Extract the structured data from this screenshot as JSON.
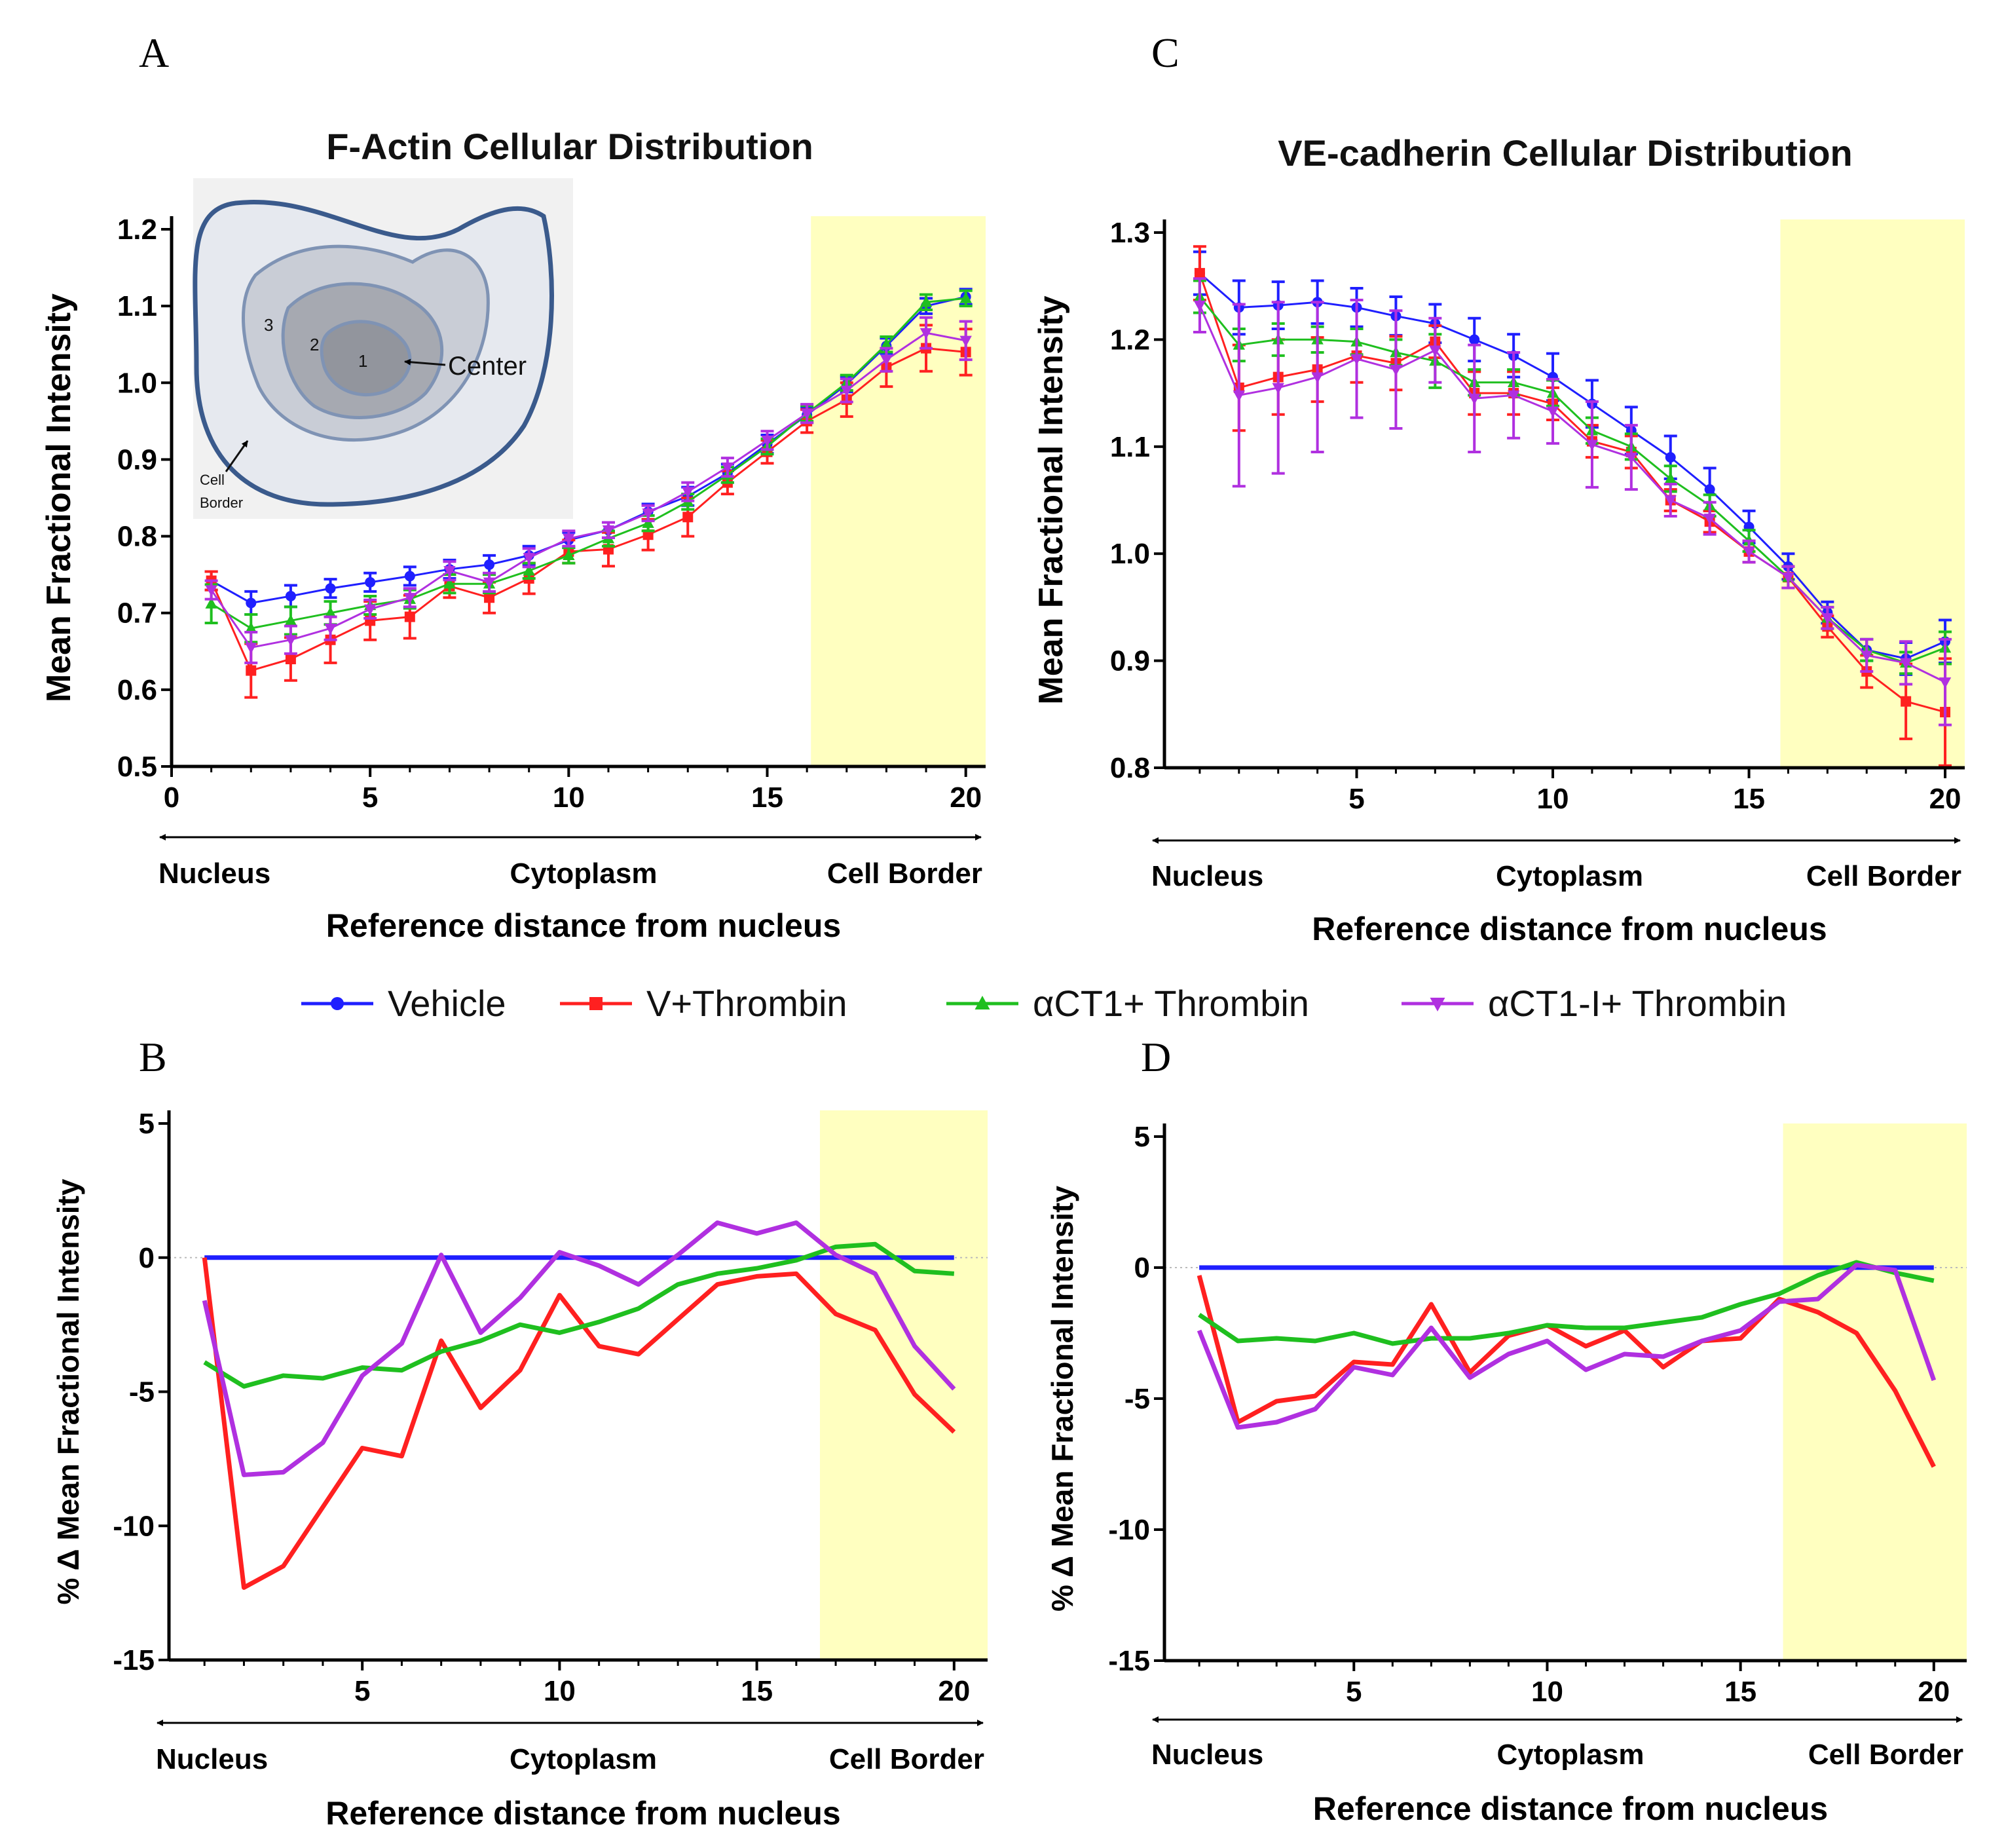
{
  "legend": [
    {
      "label": "Vehicle",
      "color": "#1f1fff",
      "marker": "circle"
    },
    {
      "label": "V+Thrombin",
      "color": "#ff2020",
      "marker": "square"
    },
    {
      "label": "αCT1+ Thrombin",
      "color": "#1fbf1f",
      "marker": "triangle-up"
    },
    {
      "label": "αCT1-I+ Thrombin",
      "color": "#b030e0",
      "marker": "triangle-down"
    }
  ],
  "colors": {
    "highlight": "#ffffc0",
    "axis": "#000000"
  },
  "chart_data": [
    {
      "panel": "A",
      "type": "line",
      "title": "F-Actin Cellular  Distribution",
      "ylabel": "Mean Fractional Intensity",
      "xlabel": "Reference distance from nucleus",
      "region_labels": [
        "Nucleus",
        "Cytoplasm",
        "Cell Border"
      ],
      "xlim": [
        0,
        20.5
      ],
      "ylim": [
        0.5,
        1.2
      ],
      "xticks": [
        0,
        5,
        10,
        15,
        20
      ],
      "yticks": [
        0.5,
        0.6,
        0.7,
        0.8,
        0.9,
        1.0,
        1.1,
        1.2
      ],
      "ytick_labels": [
        "0.5",
        "0.6",
        "0.7",
        "0.8",
        "0.9",
        "1.0",
        "1.1",
        "1.2"
      ],
      "highlight_x": [
        16.1,
        20.5
      ],
      "x": [
        1,
        2,
        3,
        4,
        5,
        6,
        7,
        8,
        9,
        10,
        11,
        12,
        13,
        14,
        15,
        16,
        17,
        18,
        19,
        20
      ],
      "series": [
        {
          "name": "Vehicle",
          "values": [
            0.742,
            0.713,
            0.722,
            0.732,
            0.74,
            0.748,
            0.757,
            0.763,
            0.775,
            0.795,
            0.808,
            0.832,
            0.852,
            0.882,
            0.92,
            0.958,
            0.998,
            1.048,
            1.1,
            1.112
          ],
          "errors": [
            0.012,
            0.015,
            0.014,
            0.012,
            0.012,
            0.012,
            0.012,
            0.012,
            0.012,
            0.01,
            0.01,
            0.01,
            0.012,
            0.012,
            0.012,
            0.01,
            0.01,
            0.01,
            0.01,
            0.01
          ]
        },
        {
          "name": "V+Thrombin",
          "values": [
            0.742,
            0.625,
            0.64,
            0.665,
            0.69,
            0.695,
            0.735,
            0.72,
            0.745,
            0.78,
            0.783,
            0.802,
            0.825,
            0.87,
            0.91,
            0.95,
            0.978,
            1.02,
            1.045,
            1.04
          ],
          "errors": [
            0.012,
            0.035,
            0.028,
            0.03,
            0.025,
            0.028,
            0.015,
            0.02,
            0.02,
            0.015,
            0.022,
            0.02,
            0.025,
            0.015,
            0.015,
            0.015,
            0.022,
            0.025,
            0.03,
            0.03
          ]
        },
        {
          "name": "αCT1+ Thrombin",
          "values": [
            0.712,
            0.68,
            0.69,
            0.7,
            0.71,
            0.718,
            0.738,
            0.738,
            0.755,
            0.775,
            0.797,
            0.817,
            0.845,
            0.88,
            0.917,
            0.96,
            1.0,
            1.05,
            1.105,
            1.11
          ],
          "errors": [
            0.025,
            0.018,
            0.018,
            0.015,
            0.012,
            0.012,
            0.012,
            0.012,
            0.01,
            0.01,
            0.01,
            0.01,
            0.01,
            0.01,
            0.01,
            0.01,
            0.01,
            0.01,
            0.01,
            0.01
          ]
        },
        {
          "name": "αCT1-I+ Thrombin",
          "values": [
            0.73,
            0.655,
            0.665,
            0.68,
            0.705,
            0.72,
            0.755,
            0.74,
            0.772,
            0.797,
            0.808,
            0.83,
            0.858,
            0.89,
            0.925,
            0.96,
            0.99,
            1.03,
            1.065,
            1.055
          ],
          "errors": [
            0.012,
            0.02,
            0.018,
            0.015,
            0.012,
            0.012,
            0.012,
            0.012,
            0.012,
            0.01,
            0.01,
            0.01,
            0.012,
            0.012,
            0.012,
            0.012,
            0.015,
            0.015,
            0.02,
            0.025
          ]
        }
      ],
      "inset": {
        "labels": [
          "1",
          "2",
          "3",
          "Center",
          "Cell",
          "Border"
        ]
      }
    },
    {
      "panel": "C",
      "type": "line",
      "title": "VE-cadherin Cellular Distribution",
      "ylabel": "Mean Fractional Intensity",
      "xlabel": "Reference distance from nucleus",
      "region_labels": [
        "Nucleus",
        "Cytoplasm",
        "Cell Border"
      ],
      "xlim": [
        0.1,
        20.5
      ],
      "ylim": [
        0.8,
        1.3
      ],
      "xticks": [
        5,
        10,
        15,
        20
      ],
      "yticks": [
        0.8,
        0.9,
        1.0,
        1.1,
        1.2,
        1.3
      ],
      "ytick_labels": [
        "0.8",
        "0.9",
        "1.0",
        "1.1",
        "1.2",
        "1.3"
      ],
      "highlight_x": [
        15.8,
        20.5
      ],
      "x": [
        1,
        2,
        3,
        4,
        5,
        6,
        7,
        8,
        9,
        10,
        11,
        12,
        13,
        14,
        15,
        16,
        17,
        18,
        19,
        20
      ],
      "series": [
        {
          "name": "Vehicle",
          "values": [
            1.262,
            1.23,
            1.232,
            1.235,
            1.23,
            1.222,
            1.215,
            1.2,
            1.185,
            1.165,
            1.14,
            1.115,
            1.09,
            1.06,
            1.025,
            0.988,
            0.945,
            0.91,
            0.902,
            0.918
          ],
          "errors": [
            0.02,
            0.025,
            0.022,
            0.02,
            0.018,
            0.018,
            0.018,
            0.02,
            0.02,
            0.022,
            0.022,
            0.022,
            0.02,
            0.02,
            0.015,
            0.012,
            0.01,
            0.01,
            0.015,
            0.02
          ]
        },
        {
          "name": "V+Thrombin",
          "values": [
            1.262,
            1.155,
            1.165,
            1.172,
            1.185,
            1.178,
            1.198,
            1.15,
            1.15,
            1.14,
            1.105,
            1.095,
            1.05,
            1.03,
            1.002,
            0.978,
            0.932,
            0.89,
            0.862,
            0.852
          ],
          "errors": [
            0.025,
            0.04,
            0.035,
            0.03,
            0.025,
            0.025,
            0.015,
            0.02,
            0.02,
            0.015,
            0.015,
            0.015,
            0.01,
            0.01,
            0.01,
            0.01,
            0.01,
            0.015,
            0.035,
            0.05
          ]
        },
        {
          "name": "αCT1+ Thrombin",
          "values": [
            1.24,
            1.195,
            1.2,
            1.2,
            1.198,
            1.188,
            1.18,
            1.16,
            1.16,
            1.15,
            1.115,
            1.1,
            1.07,
            1.045,
            1.012,
            0.978,
            0.94,
            0.91,
            0.898,
            0.912
          ],
          "errors": [
            0.015,
            0.015,
            0.015,
            0.012,
            0.012,
            0.012,
            0.025,
            0.012,
            0.012,
            0.012,
            0.012,
            0.012,
            0.012,
            0.01,
            0.01,
            0.01,
            0.01,
            0.01,
            0.01,
            0.015
          ]
        },
        {
          "name": "αCT1-I+ Thrombin",
          "values": [
            1.232,
            1.148,
            1.155,
            1.165,
            1.182,
            1.172,
            1.19,
            1.145,
            1.148,
            1.133,
            1.102,
            1.09,
            1.05,
            1.033,
            1.002,
            0.978,
            0.94,
            0.905,
            0.898,
            0.88
          ],
          "errors": [
            0.025,
            0.085,
            0.08,
            0.07,
            0.055,
            0.055,
            0.03,
            0.05,
            0.04,
            0.03,
            0.04,
            0.03,
            0.015,
            0.015,
            0.01,
            0.01,
            0.01,
            0.015,
            0.02,
            0.04
          ]
        }
      ]
    },
    {
      "panel": "B",
      "type": "line",
      "title": "",
      "ylabel": "% Δ Mean Fractional Intensity",
      "xlabel": "Reference distance from nucleus",
      "region_labels": [
        "Nucleus",
        "Cytoplasm",
        "Cell Border"
      ],
      "xlim": [
        0.1,
        20.85
      ],
      "ylim": [
        -15,
        5
      ],
      "xticks": [
        5,
        10,
        15,
        20
      ],
      "yticks": [
        -15,
        -10,
        -5,
        0,
        5
      ],
      "ytick_labels": [
        "-15",
        "-10",
        "-5",
        "0",
        "5"
      ],
      "highlight_x": [
        16.6,
        20.85
      ],
      "x": [
        1,
        2,
        3,
        4,
        5,
        6,
        7,
        8,
        9,
        10,
        11,
        12,
        13,
        14,
        15,
        16,
        17,
        18,
        19,
        20
      ],
      "series": [
        {
          "name": "Vehicle",
          "values": [
            0,
            0,
            0,
            0,
            0,
            0,
            0,
            0,
            0,
            0,
            0,
            0,
            0,
            0,
            0,
            0,
            0,
            0,
            0,
            0
          ]
        },
        {
          "name": "V+Thrombin",
          "values": [
            0,
            -12.3,
            -11.5,
            -9.3,
            -7.1,
            -7.4,
            -3.1,
            -5.6,
            -4.2,
            -1.4,
            -3.3,
            -3.6,
            -2.3,
            -1.0,
            -0.7,
            -0.6,
            -2.1,
            -2.7,
            -5.1,
            -6.5
          ]
        },
        {
          "name": "αCT1+ Thrombin",
          "values": [
            -3.9,
            -4.8,
            -4.4,
            -4.5,
            -4.1,
            -4.2,
            -3.5,
            -3.1,
            -2.5,
            -2.8,
            -2.4,
            -1.9,
            -1.0,
            -0.6,
            -0.4,
            -0.1,
            0.4,
            0.5,
            -0.5,
            -0.6
          ]
        },
        {
          "name": "αCT1-I+ Thrombin",
          "values": [
            -1.6,
            -8.1,
            -8.0,
            -6.9,
            -4.4,
            -3.2,
            0.1,
            -2.8,
            -1.5,
            0.2,
            -0.3,
            -1.0,
            0.1,
            1.3,
            0.9,
            1.3,
            0.1,
            -0.6,
            -3.3,
            -4.9
          ]
        }
      ]
    },
    {
      "panel": "D",
      "type": "line",
      "title": "",
      "ylabel": "% Δ Mean Fractional Intensity",
      "xlabel": "Reference distance from nucleus",
      "region_labels": [
        "Nucleus",
        "Cytoplasm",
        "Cell Border"
      ],
      "xlim": [
        0.1,
        20.85
      ],
      "ylim": [
        -15,
        5
      ],
      "xticks": [
        5,
        10,
        15,
        20
      ],
      "yticks": [
        -15,
        -10,
        -5,
        0,
        5
      ],
      "ytick_labels": [
        "-15",
        "-10",
        "-5",
        "0",
        "5"
      ],
      "highlight_x": [
        16.1,
        20.85
      ],
      "x": [
        1,
        2,
        3,
        4,
        5,
        6,
        7,
        8,
        9,
        10,
        11,
        12,
        13,
        14,
        15,
        16,
        17,
        18,
        19,
        20
      ],
      "series": [
        {
          "name": "Vehicle",
          "values": [
            0,
            0,
            0,
            0,
            0,
            0,
            0,
            0,
            0,
            0,
            0,
            0,
            0,
            0,
            0,
            0,
            0,
            0,
            0,
            0
          ]
        },
        {
          "name": "V+Thrombin",
          "values": [
            -0.3,
            -5.9,
            -5.1,
            -4.9,
            -3.6,
            -3.7,
            -1.4,
            -4.0,
            -2.6,
            -2.2,
            -3.0,
            -2.4,
            -3.8,
            -2.8,
            -2.7,
            -1.2,
            -1.7,
            -2.5,
            -4.7,
            -7.6
          ]
        },
        {
          "name": "αCT1+ Thrombin",
          "values": [
            -1.8,
            -2.8,
            -2.7,
            -2.8,
            -2.5,
            -2.9,
            -2.7,
            -2.7,
            -2.5,
            -2.2,
            -2.3,
            -2.3,
            -2.1,
            -1.9,
            -1.4,
            -1.0,
            -0.3,
            0.2,
            -0.2,
            -0.5
          ]
        },
        {
          "name": "αCT1-I+ Thrombin",
          "values": [
            -2.4,
            -6.1,
            -5.9,
            -5.4,
            -3.8,
            -4.1,
            -2.3,
            -4.2,
            -3.3,
            -2.8,
            -3.9,
            -3.3,
            -3.4,
            -2.8,
            -2.4,
            -1.3,
            -1.2,
            0.1,
            -0.1,
            -4.3
          ]
        }
      ]
    }
  ],
  "panel_letters": [
    "A",
    "C",
    "B",
    "D"
  ]
}
